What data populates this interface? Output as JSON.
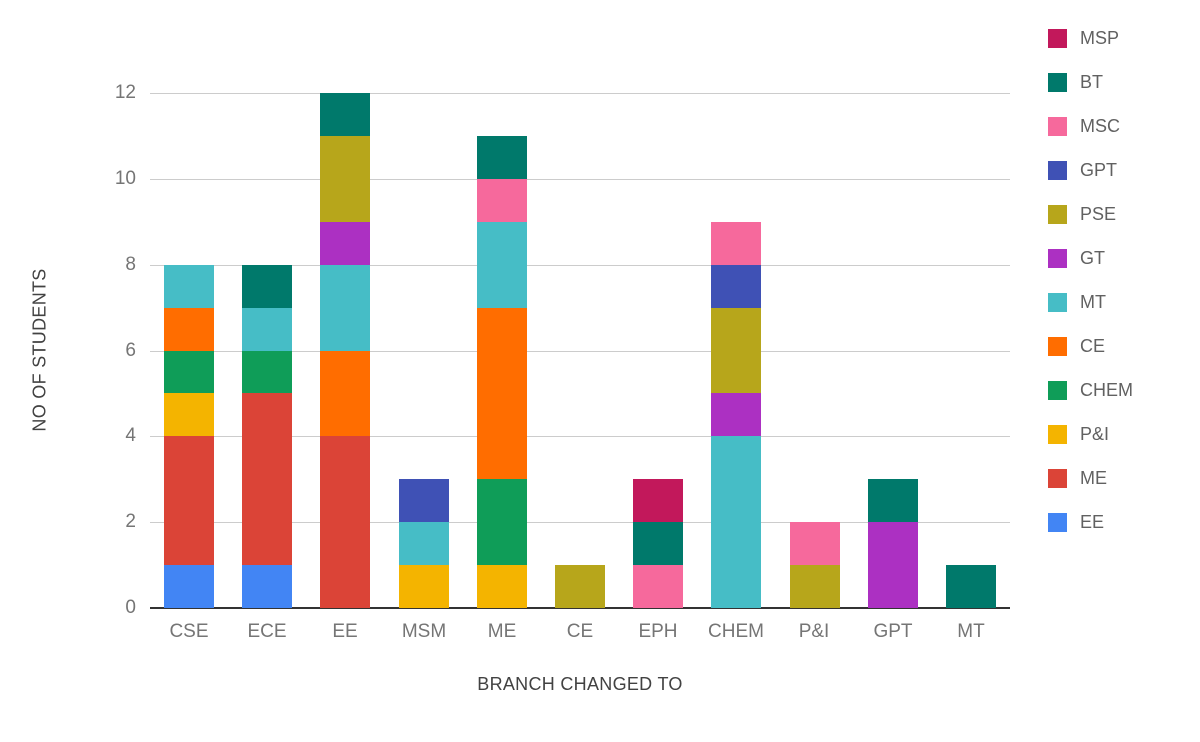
{
  "chart_data": {
    "type": "bar",
    "stacked": true,
    "xlabel": "BRANCH CHANGED TO",
    "ylabel": "NO OF STUDENTS",
    "ylim": [
      0,
      12
    ],
    "ytick_interval": 2,
    "grid": true,
    "legend_position": "right",
    "axis_colors": {
      "gridline": "#cccccc",
      "baseline": "#333333",
      "tick_label": "#757575",
      "axis_title": "#424242"
    },
    "categories": [
      "CSE",
      "ECE",
      "EE",
      "MSM",
      "ME",
      "CE",
      "EPH",
      "CHEM",
      "P&I",
      "GPT",
      "MT"
    ],
    "series": [
      {
        "name": "EE",
        "color": "#4285F4",
        "values": [
          1,
          1,
          0,
          0,
          0,
          0,
          0,
          0,
          0,
          0,
          0
        ]
      },
      {
        "name": "ME",
        "color": "#DB4437",
        "values": [
          3,
          4,
          4,
          0,
          0,
          0,
          0,
          0,
          0,
          0,
          0
        ]
      },
      {
        "name": "P&I",
        "color": "#F4B400",
        "values": [
          1,
          0,
          0,
          1,
          1,
          0,
          0,
          0,
          0,
          0,
          0
        ]
      },
      {
        "name": "CHEM",
        "color": "#0F9D58",
        "values": [
          1,
          1,
          0,
          0,
          2,
          0,
          0,
          0,
          0,
          0,
          0
        ]
      },
      {
        "name": "CE",
        "color": "#FF6D00",
        "values": [
          1,
          0,
          2,
          0,
          4,
          0,
          0,
          0,
          0,
          0,
          0
        ]
      },
      {
        "name": "MT",
        "color": "#46BDC6",
        "values": [
          1,
          1,
          2,
          1,
          2,
          0,
          0,
          4,
          0,
          0,
          0
        ]
      },
      {
        "name": "GT",
        "color": "#AC30C2",
        "values": [
          0,
          0,
          1,
          0,
          0,
          0,
          0,
          1,
          0,
          2,
          0
        ]
      },
      {
        "name": "PSE",
        "color": "#B7A61B",
        "values": [
          0,
          0,
          2,
          0,
          0,
          1,
          0,
          2,
          1,
          0,
          0
        ]
      },
      {
        "name": "GPT",
        "color": "#3F51B5",
        "values": [
          0,
          0,
          0,
          1,
          0,
          0,
          0,
          1,
          0,
          0,
          0
        ]
      },
      {
        "name": "MSC",
        "color": "#F6699C",
        "values": [
          0,
          0,
          0,
          0,
          1,
          0,
          1,
          1,
          1,
          0,
          0
        ]
      },
      {
        "name": "BT",
        "color": "#00796B",
        "values": [
          0,
          1,
          1,
          0,
          1,
          0,
          1,
          0,
          0,
          1,
          1
        ]
      },
      {
        "name": "MSP",
        "color": "#C2185B",
        "values": [
          0,
          0,
          0,
          0,
          0,
          0,
          1,
          0,
          0,
          0,
          0
        ]
      }
    ],
    "legend": [
      "MSP",
      "BT",
      "MSC",
      "GPT",
      "PSE",
      "GT",
      "MT",
      "CE",
      "CHEM",
      "P&I",
      "ME",
      "EE"
    ]
  }
}
